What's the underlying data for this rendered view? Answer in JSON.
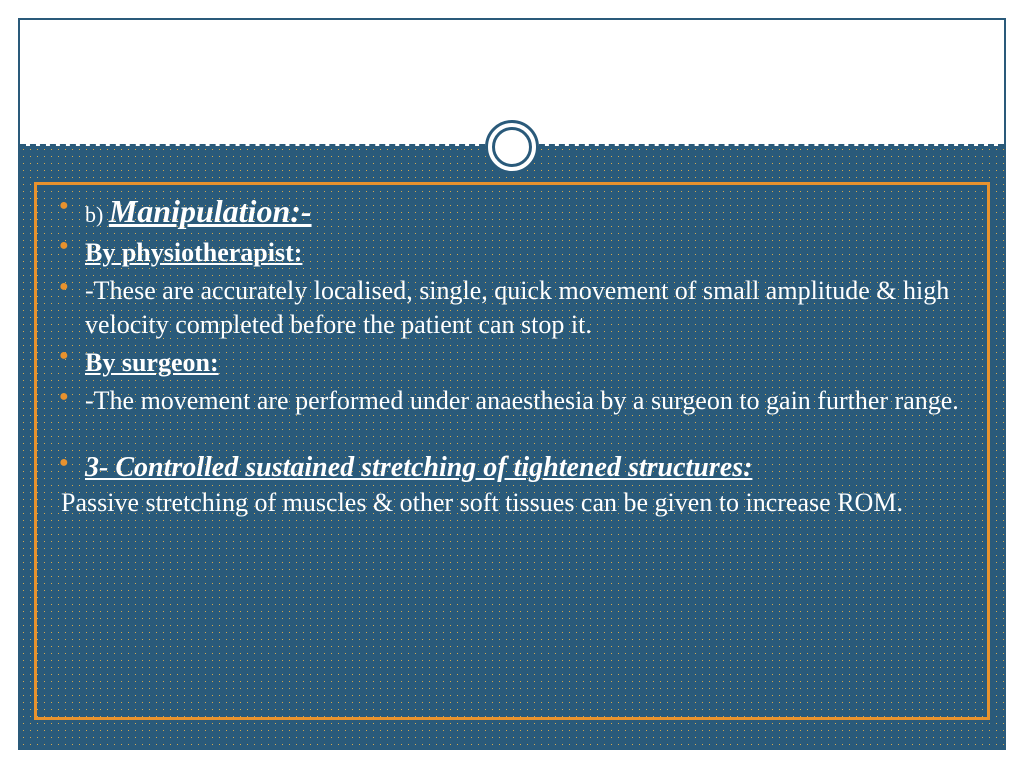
{
  "colors": {
    "background": "#2a5a7a",
    "bullet": "#e8922e",
    "border": "#e8922e",
    "frame": "#2a5a7a",
    "text": "#ffffff",
    "dot_pattern": "#d4a94e"
  },
  "typography": {
    "family": "Georgia",
    "title_size_pt": 32,
    "subhead_size_pt": 26,
    "body_size_pt": 26,
    "section_size_pt": 28
  },
  "content": {
    "item1_prefix": "b) ",
    "item1_title": "Manipulation:-",
    "item2": "By physiotherapist:",
    "item3": "       -These are accurately localised, single, quick movement of small amplitude & high velocity completed before the patient can stop it.",
    "item4": "By surgeon:",
    "item5": "       -The movement are performed under anaesthesia by a surgeon to gain further range.",
    "item6": "3- Controlled sustained stretching of tightened structures:",
    "item7": " Passive stretching  of muscles & other soft tissues can be given to increase ROM."
  }
}
